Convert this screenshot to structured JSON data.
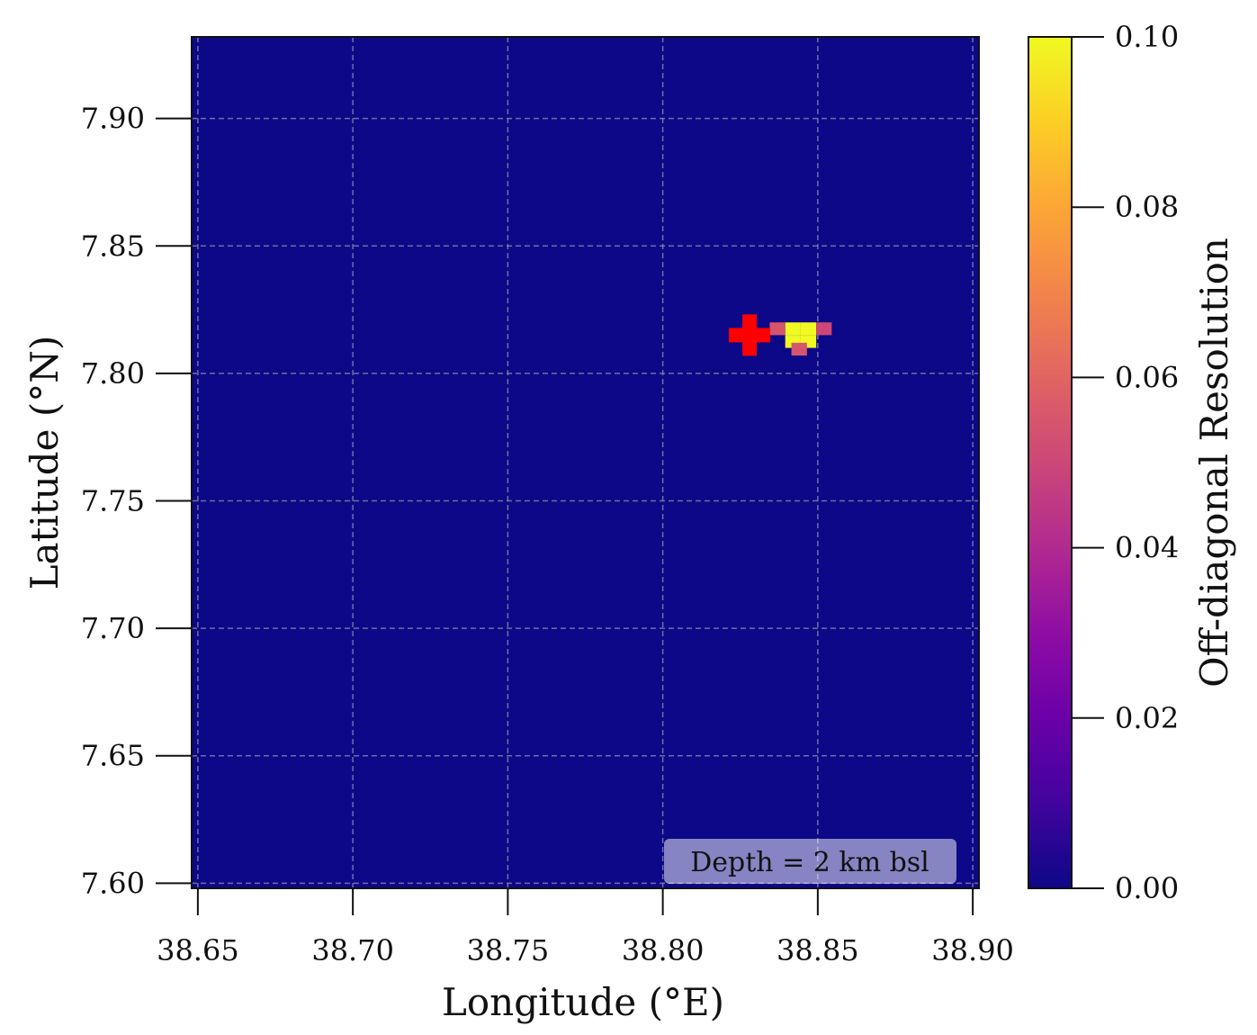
{
  "chart_data": {
    "type": "heatmap",
    "xlabel": "Longitude (°E)",
    "ylabel": "Latitude (°N)",
    "xlim": [
      38.648,
      38.902
    ],
    "ylim": [
      7.598,
      7.932
    ],
    "xticks": [
      38.65,
      38.7,
      38.75,
      38.8,
      38.85,
      38.9
    ],
    "xtick_labels": [
      "38.65",
      "38.70",
      "38.75",
      "38.80",
      "38.85",
      "38.90"
    ],
    "yticks": [
      7.6,
      7.65,
      7.7,
      7.75,
      7.8,
      7.85,
      7.9
    ],
    "ytick_labels": [
      "7.60",
      "7.65",
      "7.70",
      "7.75",
      "7.80",
      "7.85",
      "7.90"
    ],
    "grid": true,
    "background_value": 0.0,
    "cell_size_deg": 0.005,
    "cells": [
      {
        "lon": 38.842,
        "lat": 7.8175,
        "value": 0.1
      },
      {
        "lon": 38.847,
        "lat": 7.8175,
        "value": 0.1
      },
      {
        "lon": 38.842,
        "lat": 7.8125,
        "value": 0.1
      },
      {
        "lon": 38.847,
        "lat": 7.8125,
        "value": 0.1
      },
      {
        "lon": 38.837,
        "lat": 7.8175,
        "value": 0.055
      },
      {
        "lon": 38.852,
        "lat": 7.8175,
        "value": 0.05
      },
      {
        "lon": 38.844,
        "lat": 7.8095,
        "value": 0.055
      }
    ],
    "marker": {
      "type": "cross",
      "lon": 38.828,
      "lat": 7.815,
      "color": "#ff0000"
    },
    "annotation": "Depth = 2 km bsl",
    "colorbar": {
      "label": "Off-diagonal Resolution",
      "cmap": "plasma",
      "range": [
        0.0,
        0.1
      ],
      "ticks": [
        "0.00",
        "0.02",
        "0.04",
        "0.06",
        "0.08",
        "0.10"
      ]
    },
    "colors": {
      "background": "#0d0887",
      "grid": "#8888aa"
    }
  }
}
